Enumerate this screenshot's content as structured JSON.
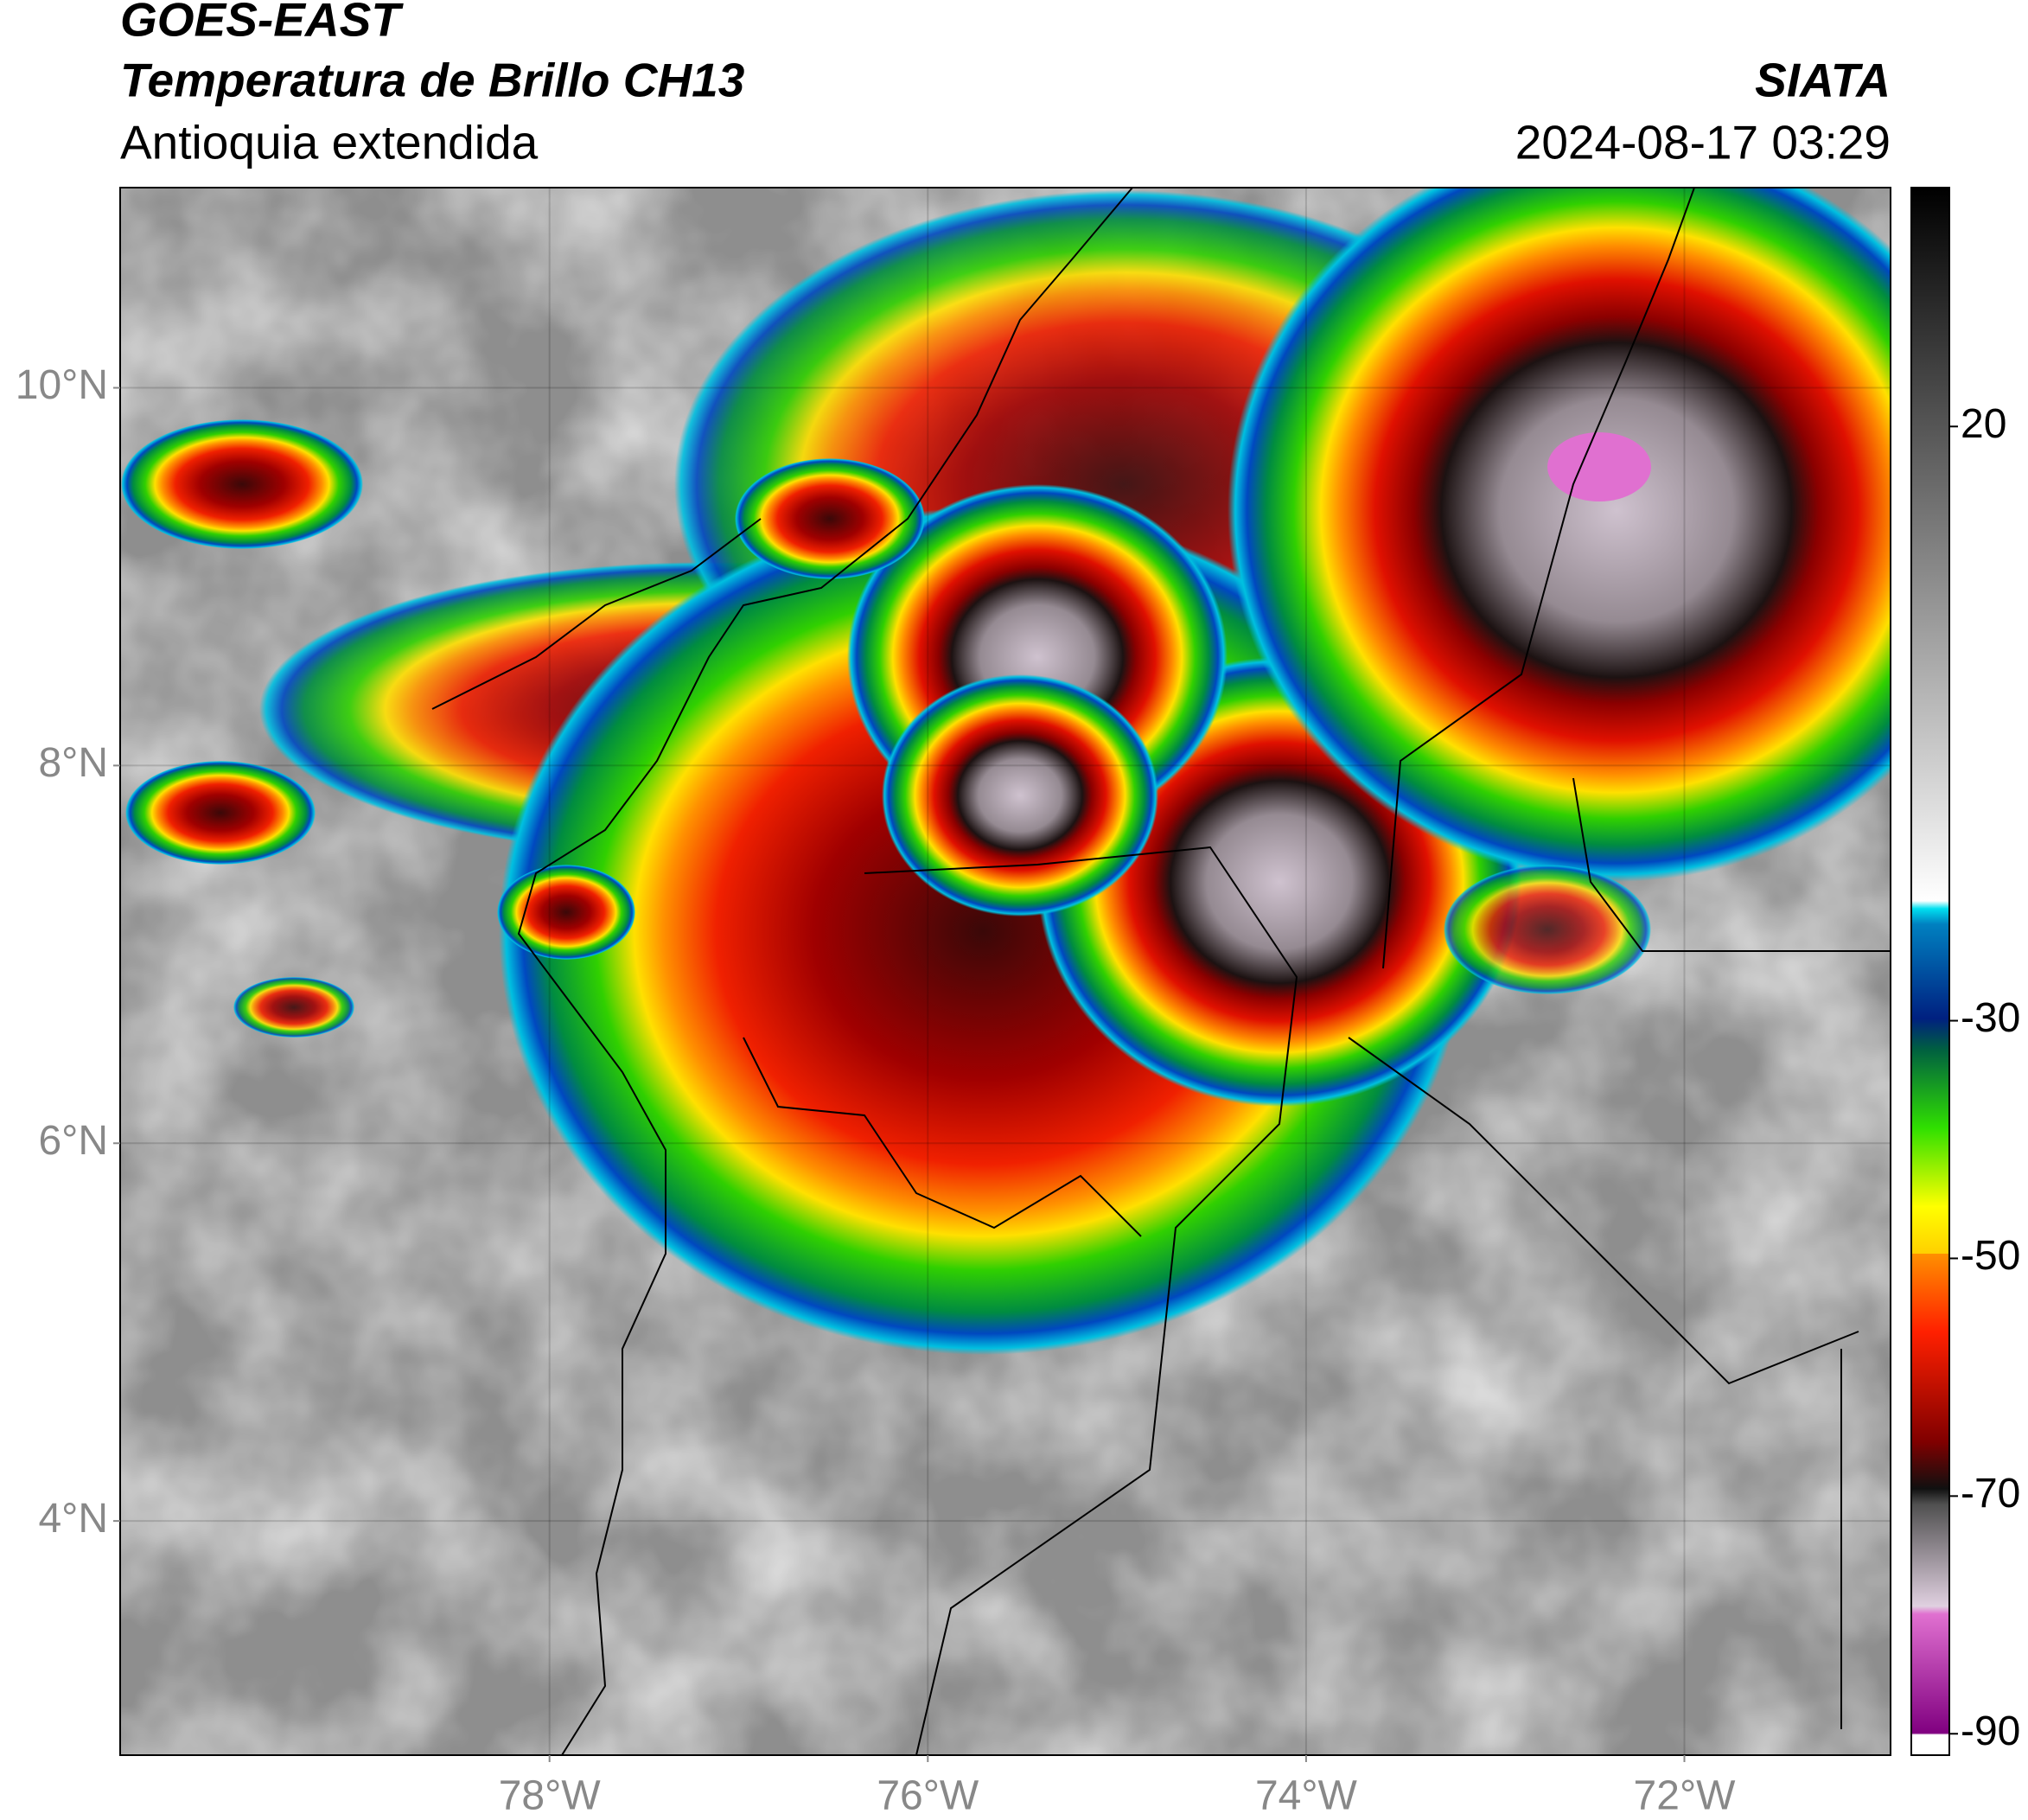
{
  "title": "GOES-EAST",
  "subtitle": "Temperatura de Brillo CH13",
  "region": "Antioquia extendida",
  "source": "SIATA",
  "timestamp": "2024-08-17 03:29",
  "map": {
    "xlim": [
      -80.27,
      -70.91
    ],
    "ylim": [
      2.76,
      11.06
    ],
    "xticks": [
      {
        "value": -78,
        "label": "78°W"
      },
      {
        "value": -76,
        "label": "76°W"
      },
      {
        "value": -74,
        "label": "74°W"
      },
      {
        "value": -72,
        "label": "72°W"
      }
    ],
    "yticks": [
      {
        "value": 4,
        "label": "4°N"
      },
      {
        "value": 6,
        "label": "6°N"
      },
      {
        "value": 8,
        "label": "8°N"
      },
      {
        "value": 10,
        "label": "10°N"
      }
    ],
    "grid": true
  },
  "colorbar": {
    "lim": [
      -91.8,
      40.1
    ],
    "ticks": [
      20,
      -30,
      -50,
      -70,
      -90
    ]
  }
}
